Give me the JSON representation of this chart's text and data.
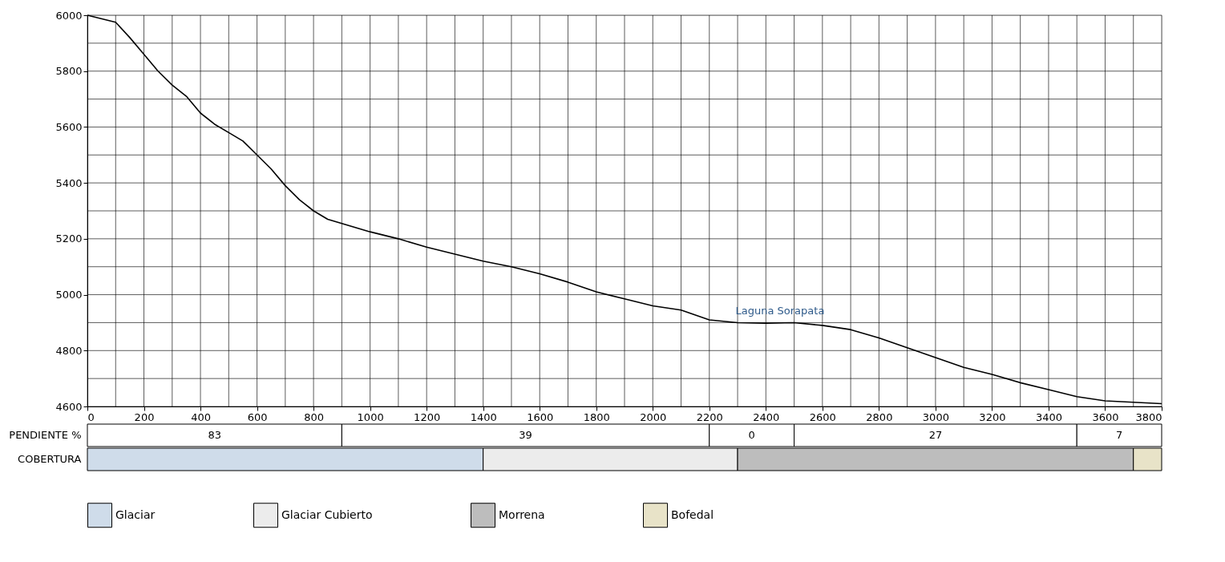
{
  "chart_data": [
    {
      "type": "line",
      "x": [
        0,
        100,
        150,
        200,
        250,
        300,
        350,
        400,
        450,
        500,
        550,
        600,
        650,
        700,
        750,
        800,
        850,
        900,
        1000,
        1100,
        1200,
        1300,
        1400,
        1500,
        1600,
        1700,
        1800,
        1900,
        2000,
        2100,
        2200,
        2300,
        2400,
        2500,
        2600,
        2700,
        2800,
        2900,
        3000,
        3100,
        3200,
        3300,
        3400,
        3500,
        3600,
        3700,
        3800
      ],
      "series": [
        {
          "color": "#000000",
          "values": [
            6000,
            5975,
            5920,
            5860,
            5800,
            5750,
            5710,
            5650,
            5610,
            5580,
            5550,
            5500,
            5450,
            5390,
            5340,
            5300,
            5270,
            5255,
            5225,
            5200,
            5170,
            5145,
            5120,
            5100,
            5075,
            5045,
            5010,
            4985,
            4960,
            4945,
            4910,
            4900,
            4898,
            4900,
            4890,
            4875,
            4845,
            4810,
            4775,
            4740,
            4715,
            4685,
            4660,
            4635,
            4620,
            4615,
            4610
          ]
        }
      ],
      "xlim": [
        0,
        3800
      ],
      "ylim": [
        4600,
        6000
      ],
      "xticks": [
        0,
        {
          "value": 100,
          "label": null
        },
        200,
        {
          "value": 300,
          "label": null
        },
        400,
        {
          "value": 500,
          "label": null
        },
        600,
        {
          "value": 700,
          "label": null
        },
        800,
        {
          "value": 900,
          "label": null
        },
        1000,
        {
          "value": 1100,
          "label": null
        },
        1200,
        {
          "value": 1300,
          "label": null
        },
        1400,
        {
          "value": 1500,
          "label": null
        },
        1600,
        {
          "value": 1700,
          "label": null
        },
        1800,
        {
          "value": 1900,
          "label": null
        },
        2000,
        {
          "value": 2100,
          "label": null
        },
        2200,
        {
          "value": 2300,
          "label": null
        },
        2400,
        {
          "value": 2500,
          "label": null
        },
        2600,
        {
          "value": 2700,
          "label": null
        },
        2800,
        {
          "value": 2900,
          "label": null
        },
        3000,
        {
          "value": 3100,
          "label": null
        },
        3200,
        {
          "value": 3300,
          "label": null
        },
        3400,
        {
          "value": 3500,
          "label": null
        },
        3600,
        {
          "value": 3700,
          "label": null
        },
        3800
      ],
      "yticks": [
        4600,
        {
          "value": 4700,
          "label": null
        },
        4800,
        {
          "value": 4900,
          "label": null
        },
        5000,
        {
          "value": 5100,
          "label": null
        },
        5200,
        {
          "value": 5300,
          "label": null
        },
        5400,
        {
          "value": 5500,
          "label": null
        },
        5600,
        {
          "value": 5700,
          "label": null
        },
        5800,
        {
          "value": 5900,
          "label": null
        },
        6000
      ],
      "grid": true,
      "marker": "none",
      "line_style": "solid",
      "annotations": [
        {
          "text": "Laguna  Sorapata",
          "x": 2450,
          "y": 4900
        }
      ]
    },
    {
      "type": "bar",
      "orientation": "horizontal",
      "stacked": true,
      "categories": [
        "PENDIENTE %"
      ],
      "xlim": [
        0,
        3800
      ],
      "tick_labels": "y",
      "annotations": [
        "83",
        "39",
        "0",
        "27",
        "7"
      ],
      "series": [
        {
          "color": "#ffffff",
          "values": [
            900
          ]
        },
        {
          "color": "#ffffff",
          "values": [
            1300
          ]
        },
        {
          "color": "#ffffff",
          "values": [
            300
          ]
        },
        {
          "color": "#ffffff",
          "values": [
            1000
          ]
        },
        {
          "color": "#ffffff",
          "values": [
            300
          ]
        }
      ]
    },
    {
      "type": "bar",
      "orientation": "horizontal",
      "stacked": true,
      "categories": [
        "COBERTURA"
      ],
      "xlim": [
        0,
        3800
      ],
      "tick_labels": "y",
      "legend": "bottom",
      "series": [
        {
          "name": "Glaciar",
          "color": "#cfdcea",
          "values": [
            1400
          ]
        },
        {
          "name": "Glaciar Cubierto",
          "color": "#ececec",
          "values": [
            900
          ]
        },
        {
          "name": "Morrena",
          "color": "#bdbdbd",
          "values": [
            1400
          ]
        },
        {
          "name": "Bofedal",
          "color": "#e8e3c8",
          "values": [
            100
          ]
        }
      ]
    }
  ]
}
